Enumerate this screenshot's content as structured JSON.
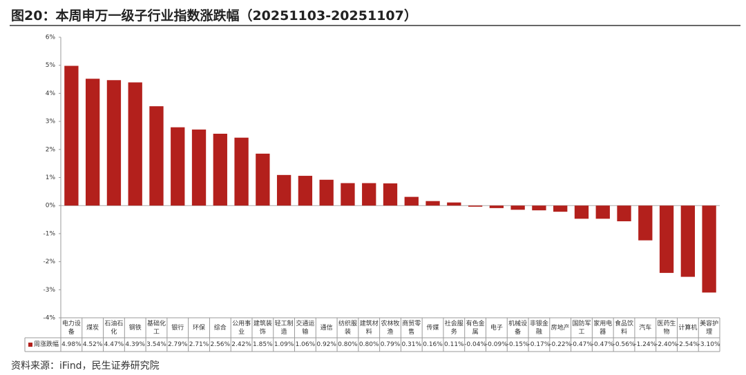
{
  "chart_data": {
    "type": "bar",
    "title": "图20：本周申万一级子行业指数涨跌幅（20251103-20251107）",
    "source": "资料来源：iFind，民生证券研究院",
    "categories": [
      "电力设备",
      "煤炭",
      "石油石化",
      "钢铁",
      "基础化工",
      "银行",
      "环保",
      "综合",
      "公用事业",
      "建筑装饰",
      "轻工制造",
      "交通运输",
      "通信",
      "纺织服装",
      "建筑材料",
      "农林牧渔",
      "商贸零售",
      "传媒",
      "社会服务",
      "有色金属",
      "电子",
      "机械设备",
      "非银金融",
      "房地产",
      "国防军工",
      "家用电器",
      "食品饮料",
      "汽车",
      "医药生物",
      "计算机",
      "美容护理"
    ],
    "series": [
      {
        "name": "周涨跌幅",
        "color": "#b3201c",
        "values": [
          4.98,
          4.52,
          4.47,
          4.39,
          3.54,
          2.79,
          2.71,
          2.56,
          2.42,
          1.85,
          1.09,
          1.06,
          0.92,
          0.8,
          0.8,
          0.79,
          0.31,
          0.16,
          0.11,
          -0.04,
          -0.09,
          -0.15,
          -0.17,
          -0.22,
          -0.47,
          -0.47,
          -0.56,
          -1.24,
          -2.4,
          -2.54,
          -3.1
        ],
        "value_labels": [
          "4.98%",
          "4.52%",
          "4.47%",
          "4.39%",
          "3.54%",
          "2.79%",
          "2.71%",
          "2.56%",
          "2.42%",
          "1.85%",
          "1.09%",
          "1.06%",
          "0.92%",
          "0.80%",
          "0.80%",
          "0.79%",
          "0.31%",
          "0.16%",
          "0.11%",
          "-0.04%",
          "-0.09%",
          "-0.15%",
          "-0.17%",
          "-0.22%",
          "-0.47%",
          "-0.47%",
          "-0.56%",
          "-1.24%",
          "-2.40%",
          "-2.54%",
          "-3.10%"
        ]
      }
    ],
    "ylim": [
      -4,
      6
    ],
    "yticks": [
      {
        "value": 6,
        "label": "6%"
      },
      {
        "value": 5,
        "label": "5%"
      },
      {
        "value": 4,
        "label": "4%"
      },
      {
        "value": 3,
        "label": "3%"
      },
      {
        "value": 2,
        "label": "2%"
      },
      {
        "value": 1,
        "label": "1%"
      },
      {
        "value": 0,
        "label": "0%"
      },
      {
        "value": -1,
        "label": "-1%"
      },
      {
        "value": -2,
        "label": "-2%"
      },
      {
        "value": -3,
        "label": "-3%"
      },
      {
        "value": -4,
        "label": "-4%"
      }
    ]
  }
}
